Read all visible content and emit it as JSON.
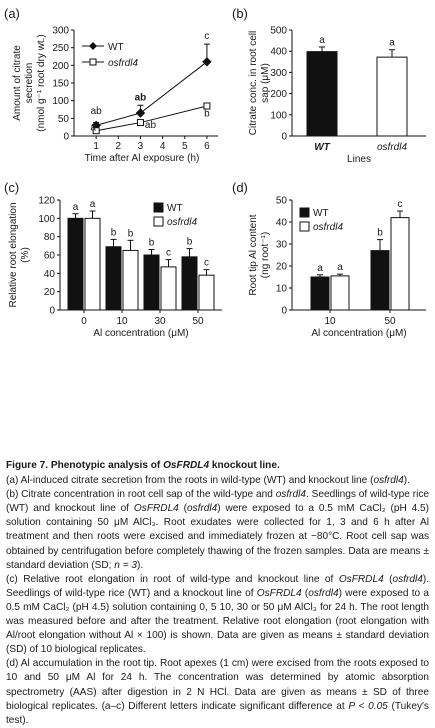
{
  "panels": {
    "a": {
      "letter": "(a)"
    },
    "b": {
      "letter": "(b)"
    },
    "c": {
      "letter": "(c)"
    },
    "d": {
      "letter": "(d)"
    }
  },
  "chart_data": [
    {
      "panel": "a",
      "type": "line",
      "xlabel": "Time after Al exposure (h)",
      "ylabel_lines": [
        "Amount of citrate",
        "secretion",
        "(nmol g⁻¹ root dry wt.)"
      ],
      "xlim": [
        0,
        6.5
      ],
      "ylim": [
        0,
        300
      ],
      "x_ticks": [
        1,
        2,
        3,
        4,
        5,
        6
      ],
      "y_ticks": [
        0,
        50,
        100,
        150,
        200,
        250,
        300
      ],
      "legend_position": "top-left",
      "x": [
        1,
        3,
        6
      ],
      "series": [
        {
          "name": "WT",
          "marker": "filled-diamond",
          "values": [
            30,
            65,
            210
          ],
          "errors": [
            8,
            22,
            50
          ],
          "letters": [
            "ab",
            "ab",
            "c"
          ]
        },
        {
          "name": "osfrdl4",
          "marker": "open-square",
          "values": [
            15,
            38,
            85
          ],
          "errors": [
            4,
            6,
            5
          ],
          "letters": [
            "a",
            "ab",
            "b"
          ]
        }
      ]
    },
    {
      "panel": "b",
      "type": "bar",
      "ylabel_lines": [
        "Citrate conc. in root cell",
        "sap (μM)"
      ],
      "xlabel": "Lines",
      "ylim": [
        0,
        500
      ],
      "y_ticks": [
        0,
        100,
        200,
        300,
        400,
        500
      ],
      "categories": [
        "WT",
        "osfrdl4"
      ],
      "values": [
        398,
        372
      ],
      "errors": [
        22,
        35
      ],
      "letters": [
        "a",
        "a"
      ],
      "colors": [
        "#111111",
        "#ffffff"
      ]
    },
    {
      "panel": "c",
      "type": "bar",
      "ylabel_lines": [
        "Relative root elongation",
        "(%)"
      ],
      "xlabel": "Al concentration (μM)",
      "ylim": [
        0,
        120
      ],
      "y_ticks": [
        0,
        20,
        40,
        60,
        80,
        100,
        120
      ],
      "categories": [
        "0",
        "10",
        "30",
        "50"
      ],
      "legend_position": "top-right",
      "series": [
        {
          "name": "WT",
          "color": "#111111",
          "values": [
            100,
            69,
            60,
            58
          ],
          "errors": [
            5,
            8,
            6,
            9
          ],
          "letters": [
            "a",
            "b",
            "b",
            "b"
          ]
        },
        {
          "name": "osfrdl4",
          "color": "#ffffff",
          "values": [
            100,
            65,
            47,
            38
          ],
          "errors": [
            8,
            11,
            8,
            6
          ],
          "letters": [
            "a",
            "b",
            "c",
            "c"
          ]
        }
      ]
    },
    {
      "panel": "d",
      "type": "bar",
      "ylabel_lines": [
        "Root tip Al content",
        "(ng root⁻¹)"
      ],
      "xlabel": "Al concentration (μM)",
      "ylim": [
        0,
        50
      ],
      "y_ticks": [
        0,
        10,
        20,
        30,
        40,
        50
      ],
      "categories": [
        "10",
        "50"
      ],
      "legend_position": "top-left",
      "series": [
        {
          "name": "WT",
          "color": "#111111",
          "values": [
            15,
            27
          ],
          "errors": [
            1,
            5
          ],
          "letters": [
            "a",
            "b"
          ]
        },
        {
          "name": "osfrdl4",
          "color": "#ffffff",
          "values": [
            15.5,
            42
          ],
          "errors": [
            0.8,
            3
          ],
          "letters": [
            "a",
            "c"
          ]
        }
      ]
    }
  ],
  "caption": {
    "title_prefix": "Figure 7.",
    "title_rest_a": " Phenotypic analysis of ",
    "title_gene": "OsFRDL4",
    "title_rest_b": " knockout line.",
    "paragraphs": [
      "(a) Al-induced citrate secretion from the roots in wild-type (WT) and knockout line (osfrdl4).",
      "(b) Citrate concentration in root cell sap of the wild-type and osfrdl4. Seedlings of wild-type rice (WT) and knockout line of OsFRDL4 (osfrdl4) were exposed to a 0.5 mM CaCl₂ (pH 4.5) solution containing 50 μM AlCl₃. Root exudates were collected for 1, 3 and 6 h after Al treatment and then roots were excised and immediately frozen at −80°C. Root cell sap was obtained by centrifugation before completely thawing of the frozen samples. Data are means ± standard deviation (SD; n = 3).",
      "(c) Relative root elongation in root of wild-type and knockout line of OsFRDL4 (osfrdl4). Seedlings of wild-type rice (WT) and a knockout line of OsFRDL4 (osfrdl4) were exposed to a 0.5 mM CaCl₂ (pH 4.5) solution containing 0, 5 10, 30 or 50 μM AlCl₃ for 24 h. The root length was measured before and after the treatment. Relative root elongation (root elongation with Al/root elongation without Al × 100) is shown. Data are given as means ± standard deviation (SD) of 10 biological replicates.",
      "(d) Al accumulation in the root tip. Root apexes (1 cm) were excised from the roots exposed to 10 and 50 μM Al for 24 h. The concentration was determined by atomic absorption spectrometry (AAS) after digestion in 2 N HCl. Data are given as means ± SD of three biological replicates. (a–c) Different letters indicate significant difference at P < 0.05 (Tukey's test)."
    ]
  }
}
